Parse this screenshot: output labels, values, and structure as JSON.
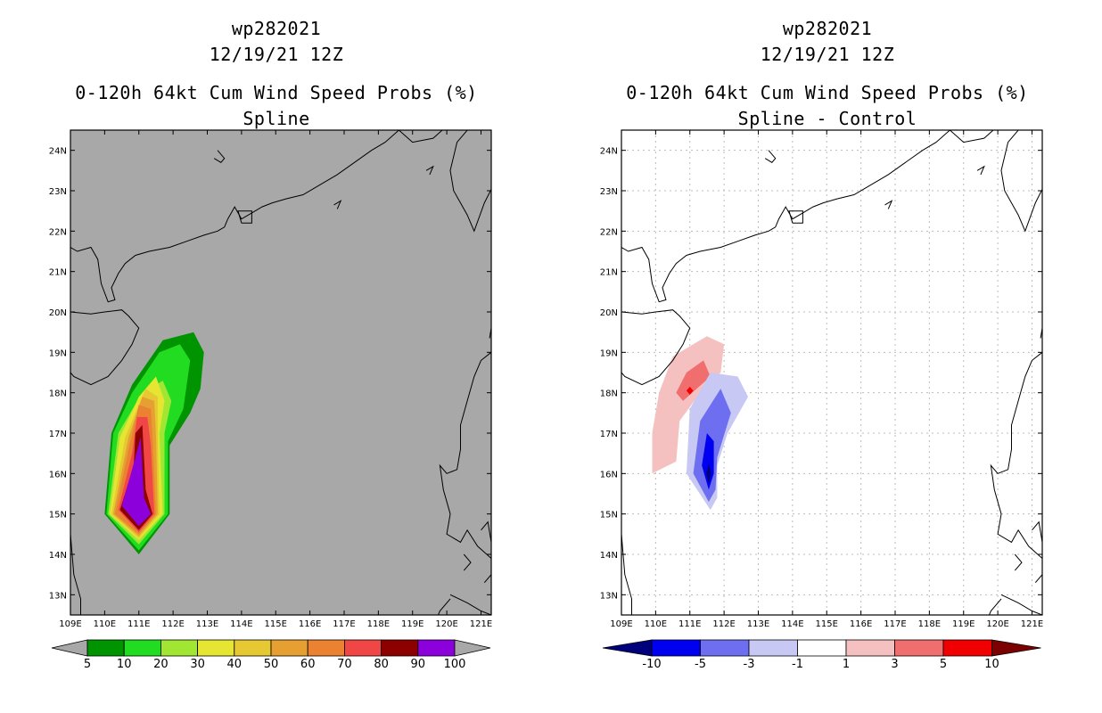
{
  "left_panel": {
    "title_line1": "wp282021",
    "title_line2": "12/19/21 12Z",
    "title_line3": "0-120h 64kt Cum Wind Speed Probs (%)",
    "title_line4": "Spline"
  },
  "right_panel": {
    "title_line1": "wp282021",
    "title_line2": "12/19/21 12Z",
    "title_line3": "0-120h 64kt Cum Wind Speed Probs (%)",
    "title_line4": "Spline - Control"
  },
  "colors": {
    "land_bg": "#a8a8a8",
    "prob": [
      "#009400",
      "#22dc22",
      "#a0e632",
      "#e6e632",
      "#e6c832",
      "#e6a032",
      "#eb8232",
      "#f04646",
      "#8c0000",
      "#8c00dc"
    ],
    "diff": [
      "#00007d",
      "#0000f0",
      "#6e6ef0",
      "#c8c8f5",
      "#ffffff",
      "#f5c0c0",
      "#f06e6e",
      "#f00000",
      "#7d0000"
    ]
  },
  "chart_data": [
    {
      "type": "heatmap",
      "title": "0-120h 64kt Cum Wind Speed Probs (%)",
      "subtitle": "Spline",
      "storm": "wp282021",
      "valid": "12/19/21 12Z",
      "xlim": [
        109,
        121.3
      ],
      "ylim": [
        12.5,
        24.5
      ],
      "x_ticks": [
        "109E",
        "110E",
        "111E",
        "112E",
        "113E",
        "114E",
        "115E",
        "116E",
        "117E",
        "118E",
        "119E",
        "120E",
        "121E"
      ],
      "y_ticks": [
        "13N",
        "14N",
        "15N",
        "16N",
        "17N",
        "18N",
        "19N",
        "20N",
        "21N",
        "22N",
        "23N",
        "24N"
      ],
      "grid": false,
      "colorbar_levels": [
        "5",
        "10",
        "20",
        "30",
        "40",
        "50",
        "60",
        "70",
        "80",
        "90",
        "100"
      ],
      "contours": [
        {
          "level": 5,
          "points": [
            [
              111.0,
              14.0
            ],
            [
              111.9,
              15.0
            ],
            [
              111.9,
              16.7
            ],
            [
              112.5,
              17.5
            ],
            [
              112.8,
              18.1
            ],
            [
              112.9,
              19.0
            ],
            [
              112.6,
              19.5
            ],
            [
              111.7,
              19.3
            ],
            [
              110.8,
              18.2
            ],
            [
              110.2,
              17.0
            ],
            [
              110.0,
              15.0
            ]
          ]
        },
        {
          "level": 10,
          "points": [
            [
              111.0,
              14.1
            ],
            [
              111.85,
              15.0
            ],
            [
              111.85,
              16.8
            ],
            [
              112.3,
              17.6
            ],
            [
              112.5,
              18.8
            ],
            [
              112.2,
              19.2
            ],
            [
              111.6,
              19.0
            ],
            [
              110.8,
              18.0
            ],
            [
              110.25,
              17.0
            ],
            [
              110.05,
              15.0
            ]
          ]
        },
        {
          "level": 20,
          "points": [
            [
              111.0,
              14.25
            ],
            [
              111.75,
              15.0
            ],
            [
              111.75,
              17.0
            ],
            [
              111.95,
              17.8
            ],
            [
              111.7,
              18.3
            ],
            [
              111.1,
              18.0
            ],
            [
              110.4,
              17.0
            ],
            [
              110.1,
              15.0
            ]
          ]
        },
        {
          "level": 30,
          "points": [
            [
              111.0,
              14.35
            ],
            [
              111.7,
              15.0
            ],
            [
              111.6,
              17.0
            ],
            [
              111.75,
              17.8
            ],
            [
              111.5,
              18.4
            ],
            [
              111.0,
              17.9
            ],
            [
              110.45,
              16.9
            ],
            [
              110.15,
              15.0
            ]
          ]
        },
        {
          "level": 40,
          "points": [
            [
              111.0,
              14.4
            ],
            [
              111.6,
              15.0
            ],
            [
              111.55,
              17.0
            ],
            [
              111.55,
              17.9
            ],
            [
              111.2,
              18.1
            ],
            [
              110.6,
              16.9
            ],
            [
              110.2,
              15.0
            ]
          ]
        },
        {
          "level": 50,
          "points": [
            [
              111.0,
              14.45
            ],
            [
              111.55,
              15.0
            ],
            [
              111.5,
              17.0
            ],
            [
              111.45,
              17.8
            ],
            [
              111.1,
              17.9
            ],
            [
              110.7,
              16.9
            ],
            [
              110.25,
              15.0
            ]
          ]
        },
        {
          "level": 60,
          "points": [
            [
              111.0,
              14.5
            ],
            [
              111.5,
              15.0
            ],
            [
              111.4,
              16.9
            ],
            [
              111.35,
              17.6
            ],
            [
              111.0,
              17.7
            ],
            [
              110.75,
              16.8
            ],
            [
              110.3,
              15.0
            ]
          ]
        },
        {
          "level": 70,
          "points": [
            [
              111.0,
              14.55
            ],
            [
              111.45,
              15.0
            ],
            [
              111.35,
              16.7
            ],
            [
              111.25,
              17.4
            ],
            [
              110.95,
              17.4
            ],
            [
              110.8,
              16.5
            ],
            [
              110.4,
              15.1
            ]
          ]
        },
        {
          "level": 80,
          "points": [
            [
              111.0,
              14.6
            ],
            [
              111.4,
              15.0
            ],
            [
              111.2,
              15.6
            ],
            [
              111.1,
              17.2
            ],
            [
              110.9,
              17.0
            ],
            [
              110.85,
              16.2
            ],
            [
              110.45,
              15.1
            ]
          ]
        },
        {
          "level": 90,
          "points": [
            [
              111.0,
              14.7
            ],
            [
              111.35,
              15.0
            ],
            [
              111.15,
              15.4
            ],
            [
              111.05,
              16.9
            ],
            [
              110.9,
              16.4
            ],
            [
              110.5,
              15.2
            ]
          ]
        }
      ]
    },
    {
      "type": "heatmap",
      "title": "0-120h 64kt Cum Wind Speed Probs (%)",
      "subtitle": "Spline - Control",
      "storm": "wp282021",
      "valid": "12/19/21 12Z",
      "xlim": [
        109,
        121.3
      ],
      "ylim": [
        12.5,
        24.5
      ],
      "x_ticks": [
        "109E",
        "110E",
        "111E",
        "112E",
        "113E",
        "114E",
        "115E",
        "116E",
        "117E",
        "118E",
        "119E",
        "120E",
        "121E"
      ],
      "y_ticks": [
        "13N",
        "14N",
        "15N",
        "16N",
        "17N",
        "18N",
        "19N",
        "20N",
        "21N",
        "22N",
        "23N",
        "24N"
      ],
      "grid": true,
      "colorbar_levels": [
        "-10",
        "-5",
        "-3",
        "-1",
        "1",
        "3",
        "5",
        "10"
      ],
      "contours": [
        {
          "level": 1,
          "points": [
            [
              109.9,
              16.0
            ],
            [
              110.6,
              16.3
            ],
            [
              110.7,
              17.3
            ],
            [
              111.3,
              18.0
            ],
            [
              111.9,
              18.5
            ],
            [
              112.0,
              19.2
            ],
            [
              111.5,
              19.4
            ],
            [
              110.5,
              18.9
            ],
            [
              110.1,
              18.0
            ],
            [
              109.9,
              17.0
            ]
          ]
        },
        {
          "level": 3,
          "points": [
            [
              110.8,
              17.8
            ],
            [
              111.6,
              18.4
            ],
            [
              111.4,
              18.8
            ],
            [
              110.9,
              18.5
            ],
            [
              110.6,
              18.0
            ]
          ]
        },
        {
          "level": 5,
          "points": [
            [
              111.0,
              17.95
            ],
            [
              111.1,
              18.05
            ],
            [
              111.0,
              18.15
            ],
            [
              110.9,
              18.05
            ]
          ]
        },
        {
          "level": -1,
          "points": [
            [
              111.6,
              15.1
            ],
            [
              111.8,
              15.4
            ],
            [
              111.8,
              16.2
            ],
            [
              112.1,
              17.0
            ],
            [
              112.7,
              17.9
            ],
            [
              112.4,
              18.4
            ],
            [
              111.6,
              18.5
            ],
            [
              111.0,
              17.6
            ],
            [
              110.9,
              16.0
            ]
          ]
        },
        {
          "level": -3,
          "points": [
            [
              111.55,
              15.3
            ],
            [
              111.75,
              15.6
            ],
            [
              111.8,
              16.4
            ],
            [
              112.2,
              17.5
            ],
            [
              111.9,
              18.1
            ],
            [
              111.3,
              17.3
            ],
            [
              111.1,
              16.0
            ]
          ]
        },
        {
          "level": -5,
          "points": [
            [
              111.55,
              15.6
            ],
            [
              111.7,
              16.0
            ],
            [
              111.7,
              16.8
            ],
            [
              111.5,
              17.0
            ],
            [
              111.35,
              16.2
            ]
          ]
        },
        {
          "level": -10,
          "points": [
            [
              111.55,
              15.75
            ],
            [
              111.62,
              16.0
            ],
            [
              111.55,
              16.25
            ],
            [
              111.48,
              16.0
            ]
          ]
        }
      ]
    }
  ]
}
